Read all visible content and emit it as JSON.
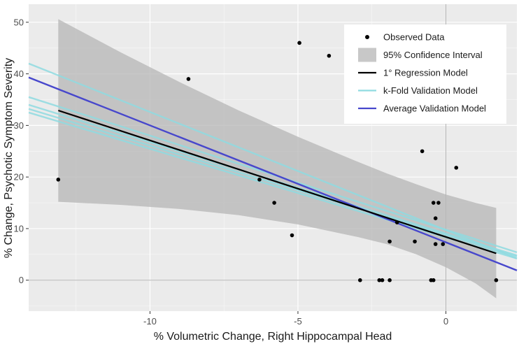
{
  "chart_data": {
    "type": "scatter",
    "xlabel": "% Volumetric Change, Right Hippocampal Head",
    "ylabel": "% Change, Psychotic Symptom Severity",
    "xlim": [
      -14.1,
      2.4
    ],
    "ylim": [
      -6,
      53.5
    ],
    "x_ticks": [
      -10,
      -5,
      0
    ],
    "y_ticks": [
      0,
      10,
      20,
      30,
      40,
      50
    ],
    "grid": true,
    "reference_lines": {
      "x": 0,
      "y": 0
    },
    "legend_position": "top-right",
    "colors": {
      "panel": "#ebebeb",
      "grid_major": "#ffffff",
      "points": "#000000",
      "confidence_band": "#b5b5b5",
      "primary_model": "#000000",
      "kfold_models": "#8fdbe0",
      "average_model": "#4747cc"
    },
    "legend": [
      {
        "key": "points",
        "label": "Observed Data"
      },
      {
        "key": "band",
        "label": "95% Confidence Interval"
      },
      {
        "key": "primary",
        "label": "1° Regression Model"
      },
      {
        "key": "kfold",
        "label": "k-Fold Validation Model"
      },
      {
        "key": "average",
        "label": "Average Validation Model"
      }
    ],
    "observed_data": [
      {
        "x": -13.1,
        "y": 19.5
      },
      {
        "x": -8.7,
        "y": 39.0
      },
      {
        "x": -6.3,
        "y": 19.5
      },
      {
        "x": -5.8,
        "y": 15.0
      },
      {
        "x": -5.2,
        "y": 8.7
      },
      {
        "x": -4.95,
        "y": 46.0
      },
      {
        "x": -3.95,
        "y": 43.5
      },
      {
        "x": -2.9,
        "y": 0
      },
      {
        "x": -2.25,
        "y": 0
      },
      {
        "x": -2.15,
        "y": 0
      },
      {
        "x": -1.9,
        "y": 0
      },
      {
        "x": -1.9,
        "y": 7.5
      },
      {
        "x": -1.65,
        "y": 11.2
      },
      {
        "x": -1.05,
        "y": 7.5
      },
      {
        "x": -0.8,
        "y": 25.0
      },
      {
        "x": -0.5,
        "y": 0
      },
      {
        "x": -0.42,
        "y": 0
      },
      {
        "x": -0.42,
        "y": 15.0
      },
      {
        "x": -0.35,
        "y": 12.0
      },
      {
        "x": -0.35,
        "y": 7.0
      },
      {
        "x": -0.25,
        "y": 15.0
      },
      {
        "x": -0.1,
        "y": 7.0
      },
      {
        "x": 0.35,
        "y": 21.8
      },
      {
        "x": 1.7,
        "y": 0
      }
    ],
    "primary_model": {
      "x": [
        -13.1,
        1.7
      ],
      "y": [
        32.9,
        5.2
      ]
    },
    "confidence_band": {
      "x": [
        -13.1,
        -11,
        -9,
        -7,
        -5,
        -3,
        -2,
        -1,
        0,
        1,
        1.7
      ],
      "upper": [
        50.6,
        44.2,
        38.4,
        32.9,
        27.8,
        23.0,
        20.7,
        18.6,
        16.6,
        15.0,
        14.0
      ],
      "lower": [
        15.2,
        14.6,
        13.8,
        12.6,
        10.8,
        8.4,
        7.0,
        5.0,
        2.5,
        -0.6,
        -3.5
      ]
    },
    "kfold_models": [
      {
        "x": [
          -14.1,
          2.4
        ],
        "y": [
          42.0,
          4.2
        ]
      },
      {
        "x": [
          -14.1,
          2.4
        ],
        "y": [
          35.5,
          5.4
        ]
      },
      {
        "x": [
          -14.1,
          2.4
        ],
        "y": [
          34.0,
          4.8
        ]
      },
      {
        "x": [
          -14.1,
          2.4
        ],
        "y": [
          33.2,
          4.6
        ]
      },
      {
        "x": [
          -14.1,
          2.4
        ],
        "y": [
          32.5,
          4.2
        ]
      }
    ],
    "average_model": {
      "x": [
        -14.1,
        2.4
      ],
      "y": [
        39.3,
        1.9
      ]
    }
  }
}
